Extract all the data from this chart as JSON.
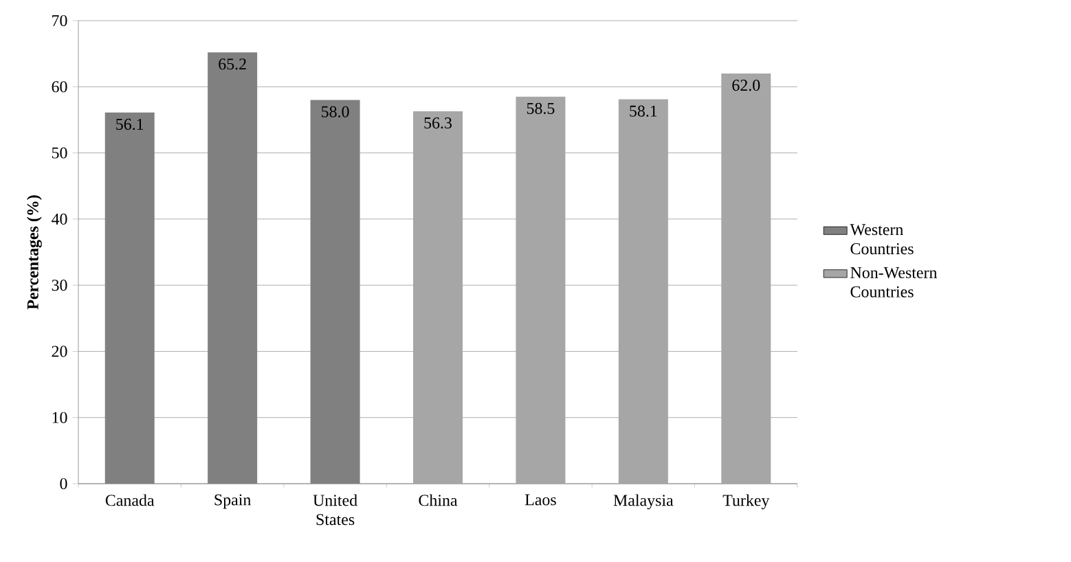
{
  "chart_data": {
    "type": "bar",
    "ylabel": "Percentages (%)",
    "categories": [
      "Canada",
      "Spain",
      "United States",
      "China",
      "Laos",
      "Malaysia",
      "Turkey"
    ],
    "series": [
      {
        "name": "Western Countries",
        "color": "#808080",
        "values": [
          56.1,
          65.2,
          58.0,
          null,
          null,
          null,
          null
        ],
        "value_labels": [
          "56.1",
          "65.2",
          "58.0",
          null,
          null,
          null,
          null
        ]
      },
      {
        "name": "Non-Western Countries",
        "color": "#a6a6a6",
        "values": [
          null,
          null,
          null,
          56.3,
          58.5,
          58.1,
          62.0
        ],
        "value_labels": [
          null,
          null,
          null,
          "56.3",
          "58.5",
          "58.1",
          "62.0"
        ]
      }
    ],
    "ylim": [
      0,
      70
    ],
    "yticks": [
      0,
      10,
      20,
      30,
      40,
      50,
      60,
      70
    ],
    "grid": "y",
    "legend": "right"
  }
}
